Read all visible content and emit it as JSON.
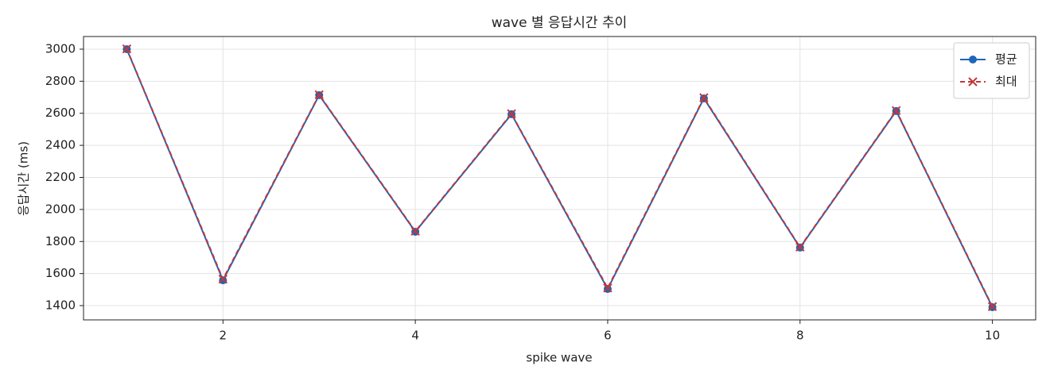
{
  "chart_data": {
    "type": "line",
    "title": "wave 별 응답시간 추이",
    "x_label": "spike wave",
    "y_label": "응답시간 (ms)",
    "x": [
      1,
      2,
      3,
      4,
      5,
      6,
      7,
      8,
      9,
      10
    ],
    "series": [
      {
        "name": "평균",
        "color": "#1f65b7",
        "marker": "o",
        "dash": false,
        "values": [
          3000,
          1558,
          2713,
          1861,
          2594,
          1504,
          2693,
          1762,
          2614,
          1390
        ]
      },
      {
        "name": "최대",
        "color": "#c0393b",
        "marker": "x",
        "dash": true,
        "values": [
          3002,
          1565,
          2716,
          1864,
          2597,
          1510,
          2697,
          1765,
          2617,
          1394
        ]
      }
    ],
    "xlim": [
      0.55,
      10.45
    ],
    "xticks": [
      2,
      4,
      6,
      8,
      10
    ],
    "ylim": [
      1311,
      3079
    ],
    "yticks": [
      1400,
      1600,
      1800,
      2000,
      2200,
      2400,
      2600,
      2800,
      3000
    ],
    "grid": true,
    "legend": "upper right"
  }
}
